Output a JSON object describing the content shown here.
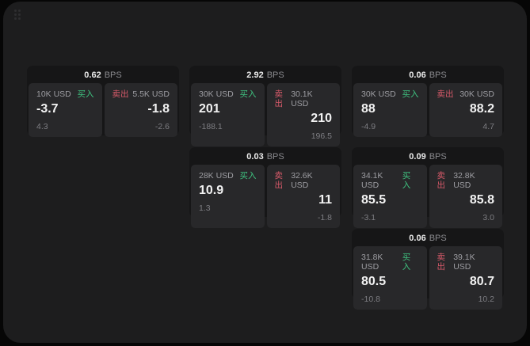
{
  "colors": {
    "buy_green": "#3fc380",
    "sell_red": "#d85a6a",
    "window_bg": "#1d1d1e",
    "card_bg": "#161617",
    "panel_bg": "#28282a"
  },
  "labels": {
    "bps_unit": "BPS",
    "buy": "买入",
    "sell": "卖出"
  },
  "cards": [
    {
      "grid": {
        "row": 1,
        "col": 1
      },
      "bps_value": "0.62",
      "bps_unit": "BPS",
      "buy": {
        "amount": "10K USD",
        "label": "买入",
        "value": "-3.7",
        "delta": "4.3"
      },
      "sell": {
        "amount": "5.5K USD",
        "label": "卖出",
        "value": "-1.8",
        "delta": "-2.6"
      }
    },
    {
      "grid": {
        "row": 1,
        "col": 2
      },
      "bps_value": "2.92",
      "bps_unit": "BPS",
      "buy": {
        "amount": "30K USD",
        "label": "买入",
        "value": "201",
        "delta": "-188.1"
      },
      "sell": {
        "amount": "30.1K USD",
        "label": "卖出",
        "value": "210",
        "delta": "196.5"
      }
    },
    {
      "grid": {
        "row": 1,
        "col": 3
      },
      "bps_value": "0.06",
      "bps_unit": "BPS",
      "buy": {
        "amount": "30K USD",
        "label": "买入",
        "value": "88",
        "delta": "-4.9"
      },
      "sell": {
        "amount": "30K USD",
        "label": "卖出",
        "value": "88.2",
        "delta": "4.7"
      }
    },
    {
      "grid": {
        "row": 2,
        "col": 2
      },
      "bps_value": "0.03",
      "bps_unit": "BPS",
      "buy": {
        "amount": "28K USD",
        "label": "买入",
        "value": "10.9",
        "delta": "1.3"
      },
      "sell": {
        "amount": "32.6K USD",
        "label": "卖出",
        "value": "11",
        "delta": "-1.8"
      }
    },
    {
      "grid": {
        "row": 2,
        "col": 3
      },
      "bps_value": "0.09",
      "bps_unit": "BPS",
      "buy": {
        "amount": "34.1K USD",
        "label": "买入",
        "value": "85.5",
        "delta": "-3.1"
      },
      "sell": {
        "amount": "32.8K USD",
        "label": "卖出",
        "value": "85.8",
        "delta": "3.0"
      }
    },
    {
      "grid": {
        "row": 3,
        "col": 3
      },
      "bps_value": "0.06",
      "bps_unit": "BPS",
      "buy": {
        "amount": "31.8K USD",
        "label": "买入",
        "value": "80.5",
        "delta": "-10.8"
      },
      "sell": {
        "amount": "39.1K USD",
        "label": "卖出",
        "value": "80.7",
        "delta": "10.2"
      }
    }
  ]
}
